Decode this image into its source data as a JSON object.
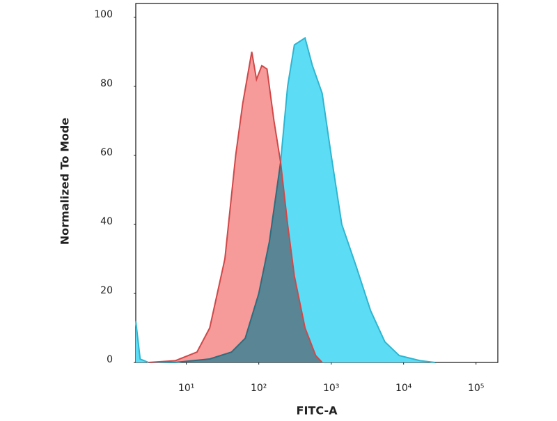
{
  "chart_data": {
    "type": "area",
    "xlabel": "FITC-A",
    "ylabel": "Normalized To Mode",
    "xscale": "log",
    "xlim": [
      2,
      200000
    ],
    "xticks": [
      {
        "value": 10,
        "label": "10¹"
      },
      {
        "value": 100,
        "label": "10²"
      },
      {
        "value": 1000,
        "label": "10³"
      },
      {
        "value": 10000,
        "label": "10⁴"
      },
      {
        "value": 100000,
        "label": "10⁵"
      }
    ],
    "ylim": [
      0,
      104
    ],
    "yticks": [
      0,
      20,
      40,
      60,
      80,
      100
    ],
    "series": [
      {
        "color": "#2fb5d0",
        "fill": "#5ddcf5",
        "x": [
          2,
          2.3,
          3,
          7,
          21,
          42,
          65,
          100,
          140,
          200,
          250,
          310,
          435,
          550,
          750,
          1000,
          1400,
          2200,
          3500,
          5500,
          8700,
          17000,
          27000
        ],
        "values": [
          12,
          1,
          0,
          0,
          1,
          3,
          7,
          20,
          35,
          58,
          80,
          92,
          94,
          86,
          78,
          60,
          40,
          28,
          15,
          6,
          2,
          0.5,
          0
        ]
      },
      {
        "color": "#d04848",
        "fill": "#f79a9a",
        "x": [
          3,
          7,
          14,
          21,
          34,
          48,
          60,
          80,
          93,
          110,
          130,
          162,
          200,
          250,
          310,
          435,
          610,
          750
        ],
        "values": [
          0,
          0.5,
          3,
          10,
          30,
          60,
          75,
          90,
          82,
          86,
          85,
          70,
          58,
          40,
          25,
          10,
          2,
          0
        ]
      }
    ]
  }
}
